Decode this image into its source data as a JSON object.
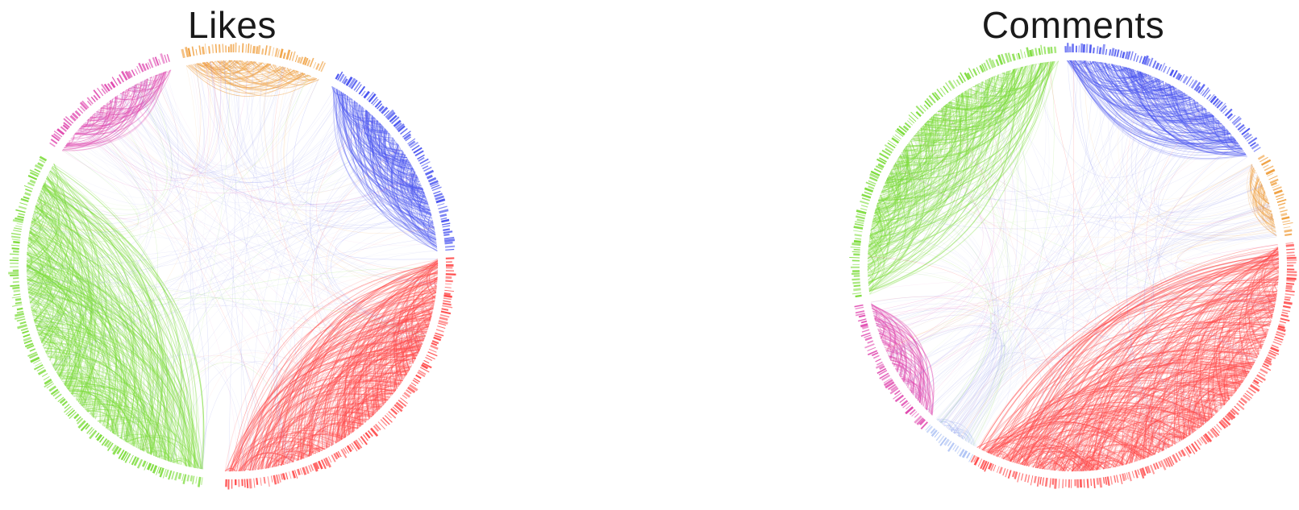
{
  "panels": [
    {
      "id": "likes",
      "title": "Likes",
      "groups": [
        {
          "color": "#ff4d4d",
          "start": -2,
          "end": 92,
          "weight": 1.0
        },
        {
          "color": "#7ddc3c",
          "start": 98,
          "end": 210,
          "weight": 0.9
        },
        {
          "color": "#e04bb0",
          "start": 214,
          "end": 253,
          "weight": 0.7
        },
        {
          "color": "#f0a040",
          "start": 257,
          "end": 295,
          "weight": 0.7
        },
        {
          "color": "#4a55f0",
          "start": 299,
          "end": 356,
          "weight": 0.9
        }
      ]
    },
    {
      "id": "comments",
      "title": "Comments",
      "groups": [
        {
          "color": "#ff4d4d",
          "start": -6,
          "end": 118,
          "weight": 1.0
        },
        {
          "color": "#b0c4f5",
          "start": 118,
          "end": 132,
          "weight": 0.4
        },
        {
          "color": "#e04bb0",
          "start": 133,
          "end": 170,
          "weight": 0.7
        },
        {
          "color": "#7ddc3c",
          "start": 172,
          "end": 266,
          "weight": 0.9
        },
        {
          "color": "#4a55f0",
          "start": 268,
          "end": 328,
          "weight": 1.0
        },
        {
          "color": "#f0a040",
          "start": 330,
          "end": 352,
          "weight": 0.7
        }
      ]
    }
  ]
}
